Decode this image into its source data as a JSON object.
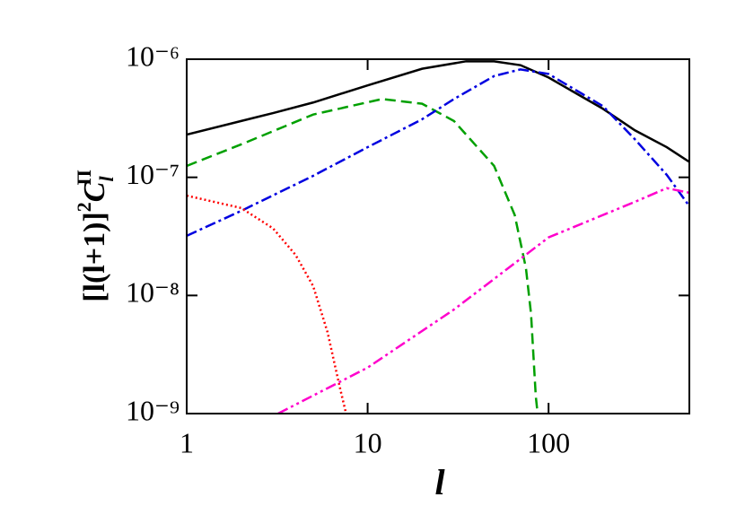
{
  "chart_data": {
    "type": "line",
    "x_label": "l",
    "y_label_parts": [
      "[l(l+1)]",
      "2",
      "C",
      "l",
      "Π"
    ],
    "xscale": "log",
    "yscale": "log",
    "xlim": [
      1,
      600
    ],
    "ylim": [
      1e-09,
      1e-06
    ],
    "xticks": [
      1,
      10,
      100
    ],
    "yticks": [
      {
        "value": 1e-09,
        "label": "10⁻⁹"
      },
      {
        "value": 1e-08,
        "label": "10⁻⁸"
      },
      {
        "value": 1e-07,
        "label": "10⁻⁷"
      },
      {
        "value": 1e-06,
        "label": "10⁻⁶"
      }
    ],
    "series": [
      {
        "color": "#000000",
        "dash": "solid",
        "x": [
          1,
          2,
          3,
          5,
          10,
          20,
          35,
          50,
          70,
          100,
          200,
          300,
          450,
          600
        ],
        "values": [
          2.3e-07,
          3e-07,
          3.5e-07,
          4.3e-07,
          6e-07,
          8.3e-07,
          9.6e-07,
          9.6e-07,
          8.9e-07,
          7e-07,
          3.8e-07,
          2.5e-07,
          1.8e-07,
          1.35e-07
        ]
      },
      {
        "color": "#00a000",
        "dash": "dashed",
        "x": [
          1,
          2,
          5,
          12,
          20,
          30,
          50,
          65,
          75,
          80,
          85,
          87
        ],
        "values": [
          1.25e-07,
          1.9e-07,
          3.4e-07,
          4.6e-07,
          4.2e-07,
          3e-07,
          1.25e-07,
          4.8e-08,
          1.7e-08,
          7e-09,
          1.4e-09,
          1e-09
        ]
      },
      {
        "color": "#0000e0",
        "dash": "dashdot",
        "x": [
          1,
          2,
          5,
          10,
          20,
          30,
          50,
          70,
          100,
          200,
          300,
          450,
          600
        ],
        "values": [
          3.2e-08,
          5.2e-08,
          1.03e-07,
          1.8e-07,
          3.1e-07,
          4.6e-07,
          7.2e-07,
          8.2e-07,
          7.5e-07,
          4e-07,
          2.1e-07,
          1.05e-07,
          5.7e-08
        ]
      },
      {
        "color": "#ff0000",
        "dash": "dotted",
        "x": [
          1,
          2,
          3,
          4,
          5,
          6,
          7,
          7.6
        ],
        "values": [
          7e-08,
          5.5e-08,
          3.7e-08,
          2.2e-08,
          1.2e-08,
          4.9e-09,
          1.7e-09,
          1e-09
        ]
      },
      {
        "color": "#ff00cc",
        "dash": "dashdotdot",
        "x": [
          3.2,
          10,
          30,
          100,
          300,
          450,
          600
        ],
        "values": [
          1e-09,
          2.45e-09,
          7.6e-09,
          3.1e-08,
          6.2e-08,
          8.1e-08,
          7.4e-08
        ]
      }
    ]
  }
}
